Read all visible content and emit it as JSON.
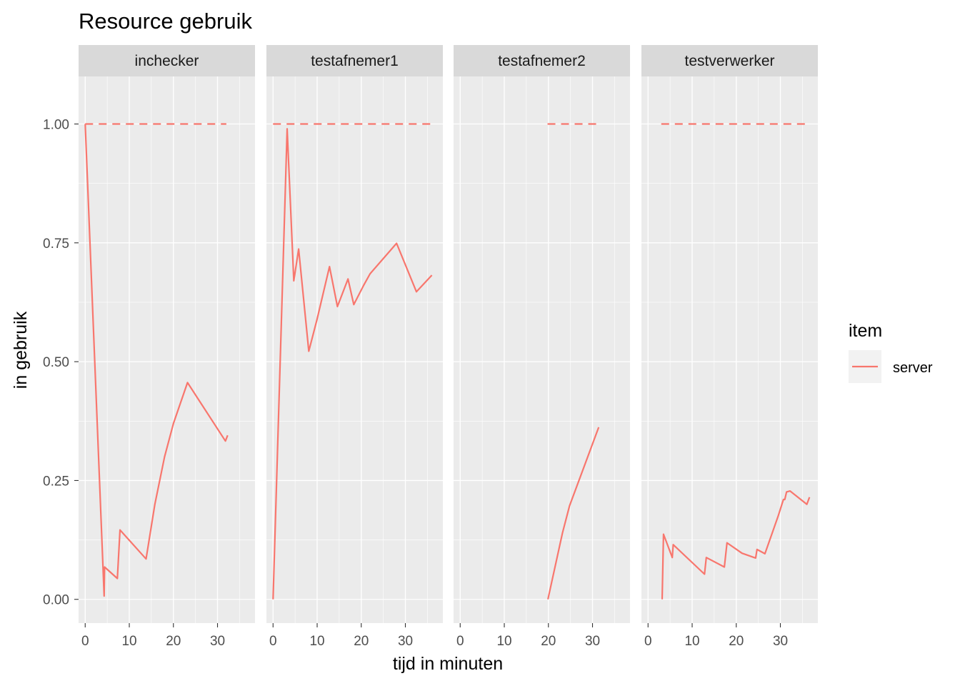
{
  "chart_data": {
    "type": "line",
    "title": "Resource gebruik",
    "xlabel": "tijd in minuten",
    "ylabel": "in gebruik",
    "xlim": [
      -1.5,
      38.5
    ],
    "ylim": [
      -0.05,
      1.1
    ],
    "x_ticks": [
      0,
      10,
      20,
      30
    ],
    "y_ticks": [
      0.0,
      0.25,
      0.5,
      0.75,
      1.0
    ],
    "y_tick_labels": [
      "0.00",
      "0.25",
      "0.50",
      "0.75",
      "1.00"
    ],
    "grid": true,
    "legend": {
      "title": "item",
      "position": "right",
      "entries": [
        {
          "name": "server",
          "color": "#F8766D"
        }
      ]
    },
    "series_color": "#F8766D",
    "panels": [
      {
        "name": "inchecker",
        "capacity": {
          "x": [
            0,
            32
          ],
          "y": 1.0
        },
        "usage": [
          [
            0,
            1.0
          ],
          [
            4.3,
            0.007
          ],
          [
            4.4,
            0.068
          ],
          [
            7.3,
            0.044
          ],
          [
            7.9,
            0.146
          ],
          [
            13.8,
            0.085
          ],
          [
            15.8,
            0.2
          ],
          [
            18,
            0.3
          ],
          [
            20,
            0.37
          ],
          [
            23.2,
            0.456
          ],
          [
            31.8,
            0.333
          ],
          [
            32.3,
            0.345
          ]
        ]
      },
      {
        "name": "testafnemer1",
        "capacity": {
          "x": [
            0,
            36
          ],
          "y": 1.0
        },
        "usage": [
          [
            0,
            0.0
          ],
          [
            3.2,
            0.99
          ],
          [
            4.7,
            0.67
          ],
          [
            5.8,
            0.737
          ],
          [
            8.1,
            0.522
          ],
          [
            10,
            0.59
          ],
          [
            12.8,
            0.7
          ],
          [
            14.6,
            0.616
          ],
          [
            17,
            0.674
          ],
          [
            18.3,
            0.62
          ],
          [
            20.5,
            0.66
          ],
          [
            22,
            0.685
          ],
          [
            28,
            0.749
          ],
          [
            32.5,
            0.647
          ],
          [
            36,
            0.682
          ]
        ]
      },
      {
        "name": "testafnemer2",
        "capacity": {
          "x": [
            19.8,
            31.5
          ],
          "y": 1.0
        },
        "usage": [
          [
            19.9,
            0.0
          ],
          [
            23.2,
            0.14
          ],
          [
            24.8,
            0.197
          ],
          [
            31.4,
            0.362
          ]
        ]
      },
      {
        "name": "testverwerker",
        "capacity": {
          "x": [
            3,
            36.8
          ],
          "y": 1.0
        },
        "usage": [
          [
            3.2,
            0.0
          ],
          [
            3.5,
            0.137
          ],
          [
            5.5,
            0.088
          ],
          [
            5.7,
            0.115
          ],
          [
            12.8,
            0.053
          ],
          [
            13.2,
            0.088
          ],
          [
            17.3,
            0.068
          ],
          [
            17.9,
            0.119
          ],
          [
            21.3,
            0.097
          ],
          [
            24.4,
            0.087
          ],
          [
            24.7,
            0.105
          ],
          [
            26.5,
            0.096
          ],
          [
            29.5,
            0.175
          ],
          [
            30.7,
            0.21
          ],
          [
            31,
            0.21
          ],
          [
            31.4,
            0.226
          ],
          [
            32.2,
            0.228
          ],
          [
            36,
            0.2
          ],
          [
            36.6,
            0.215
          ]
        ]
      }
    ]
  }
}
